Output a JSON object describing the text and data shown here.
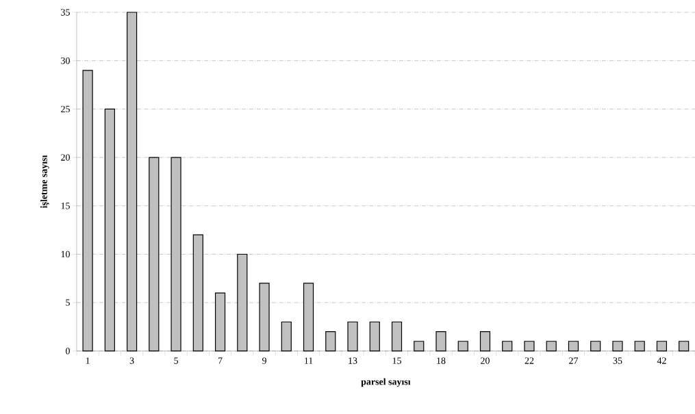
{
  "chart_data": {
    "type": "bar",
    "xlabel": "parsel sayısı",
    "ylabel": "işletme sayısı",
    "categories": [
      "1",
      null,
      "3",
      null,
      "5",
      null,
      "7",
      null,
      "9",
      null,
      "11",
      null,
      "13",
      null,
      "15",
      null,
      "18",
      null,
      "20",
      null,
      "22",
      null,
      "27",
      null,
      "35",
      null,
      "42",
      null
    ],
    "values": [
      29,
      25,
      35,
      20,
      20,
      12,
      6,
      10,
      7,
      3,
      7,
      2,
      3,
      3,
      3,
      1,
      2,
      1,
      2,
      1,
      1,
      1,
      1,
      1,
      1,
      1,
      1,
      1
    ],
    "color": "#c0c0c0",
    "ylim": [
      0,
      35
    ],
    "yticks": [
      0,
      5,
      10,
      15,
      20,
      25,
      30,
      35
    ],
    "grid": "y"
  }
}
